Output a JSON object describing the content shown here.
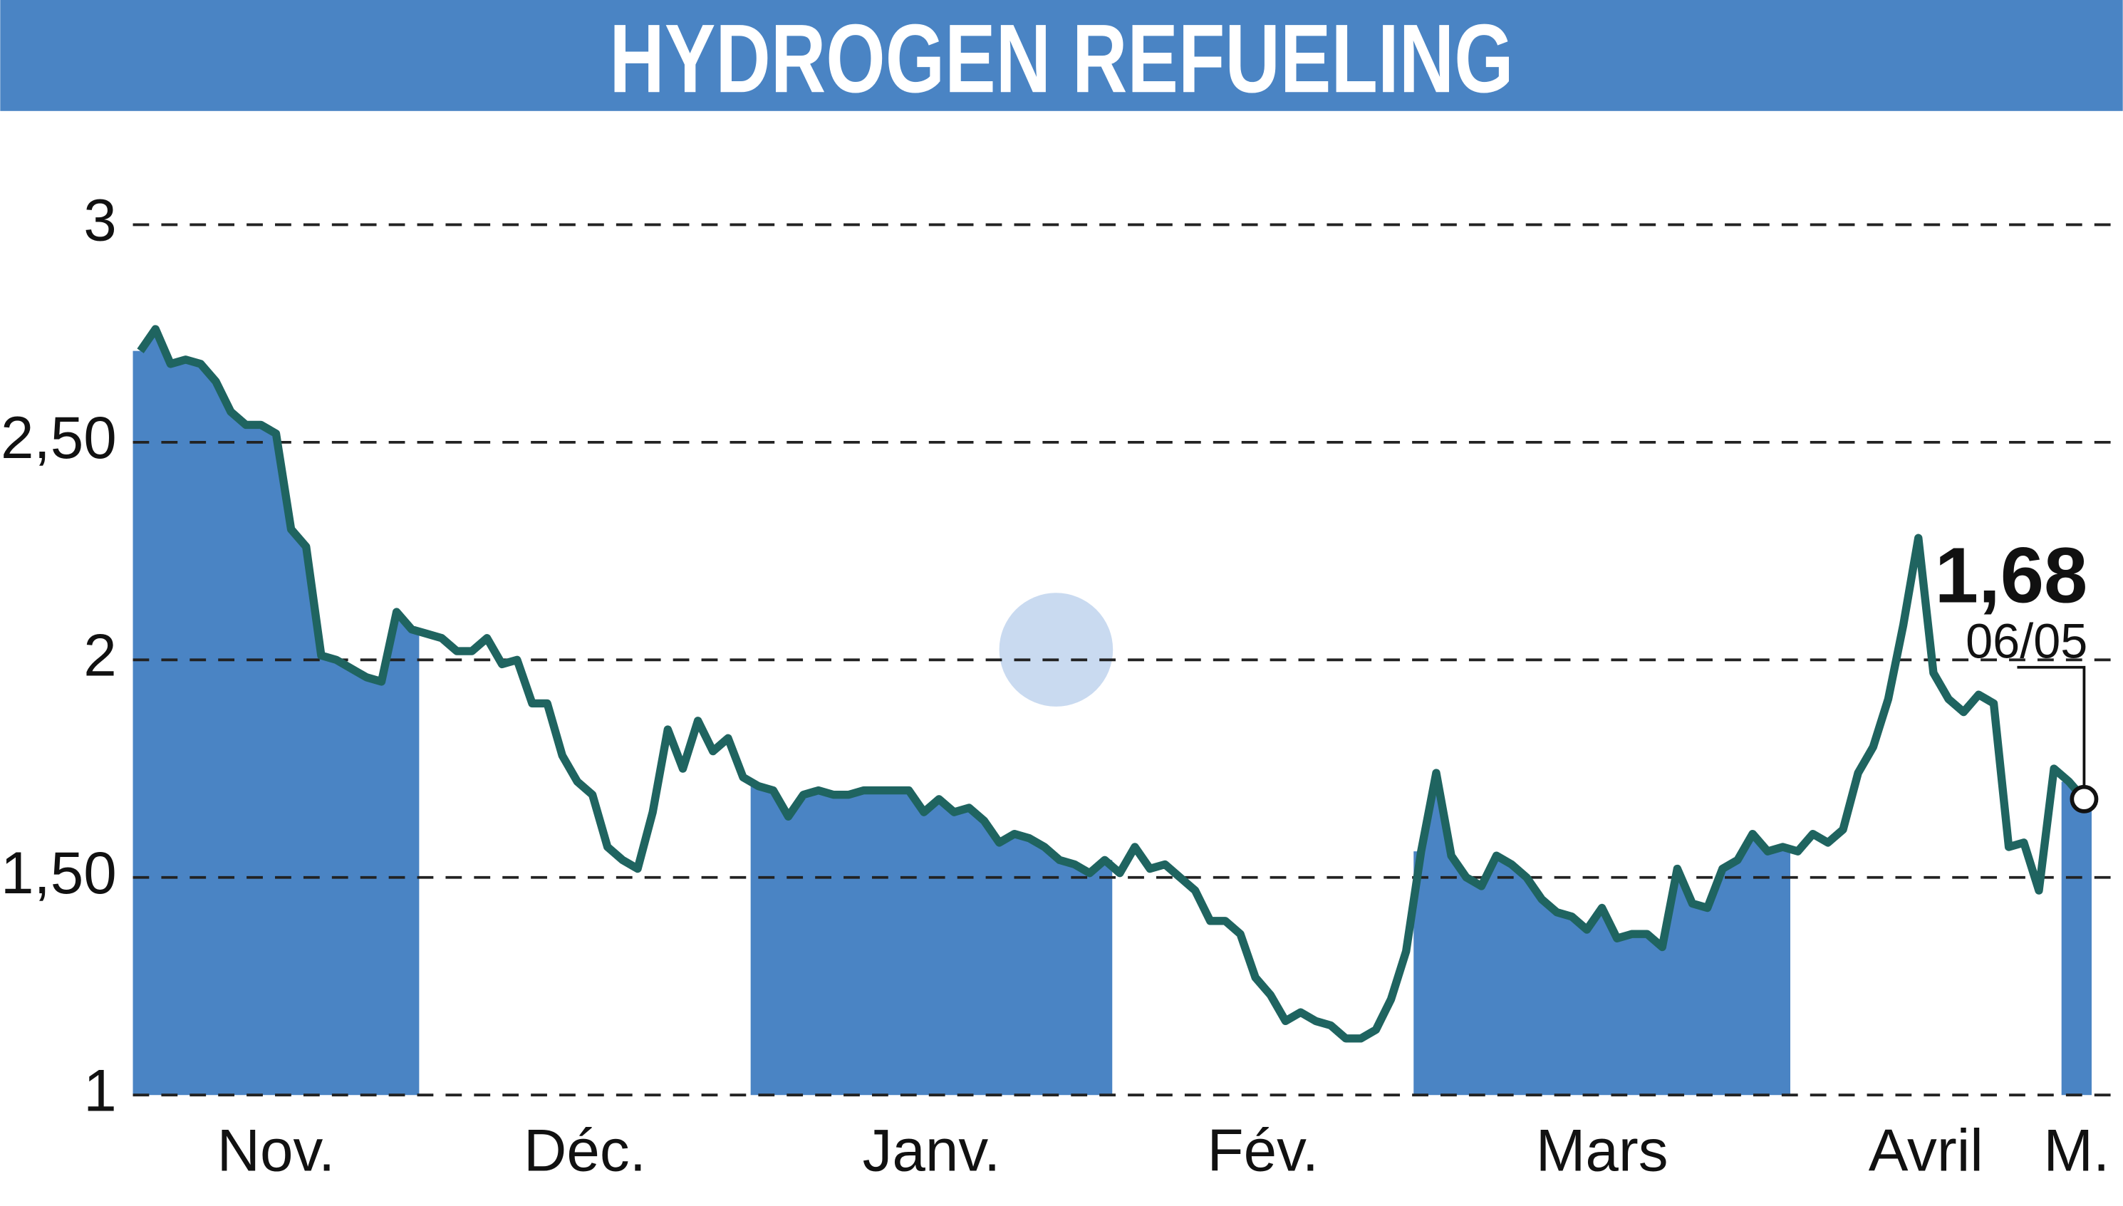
{
  "chart_data": {
    "type": "line",
    "title": "HYDROGEN REFUELING",
    "categories": [
      "Nov.",
      "Déc.",
      "Janv.",
      "Fév.",
      "Mars",
      "Avril",
      "M."
    ],
    "values": [
      [
        2.71,
        2.76,
        2.68,
        2.69,
        2.68,
        2.64,
        2.57,
        2.54,
        2.54,
        2.52,
        2.3,
        2.26,
        2.01,
        2.0,
        1.98,
        1.96,
        1.95,
        2.11,
        2.07
      ],
      [
        2.06,
        2.05,
        2.02,
        2.02,
        2.05,
        1.99,
        2.0,
        1.9,
        1.9,
        1.78,
        1.72,
        1.69,
        1.57,
        1.54,
        1.52,
        1.65,
        1.84,
        1.75,
        1.86,
        1.79,
        1.82,
        1.73
      ],
      [
        1.71,
        1.7,
        1.64,
        1.69,
        1.7,
        1.69,
        1.69,
        1.7,
        1.7,
        1.7,
        1.7,
        1.65,
        1.68,
        1.65,
        1.66,
        1.63,
        1.58,
        1.6,
        1.59,
        1.57,
        1.54,
        1.53,
        1.51,
        1.54
      ],
      [
        1.51,
        1.57,
        1.52,
        1.53,
        1.5,
        1.47,
        1.4,
        1.4,
        1.37,
        1.27,
        1.23,
        1.17,
        1.19,
        1.17,
        1.16,
        1.13,
        1.13,
        1.15,
        1.22,
        1.33
      ],
      [
        1.56,
        1.74,
        1.55,
        1.5,
        1.48,
        1.55,
        1.53,
        1.5,
        1.45,
        1.42,
        1.41,
        1.38,
        1.43,
        1.36,
        1.37,
        1.37,
        1.34,
        1.52,
        1.44,
        1.43,
        1.52,
        1.54,
        1.6,
        1.56,
        1.57
      ],
      [
        1.56,
        1.6,
        1.58,
        1.61,
        1.74,
        1.8,
        1.91,
        2.08,
        2.28,
        1.97,
        1.91,
        1.88,
        1.92,
        1.9,
        1.57,
        1.58,
        1.47,
        1.75
      ],
      [
        1.72,
        1.68
      ]
    ],
    "last_value_label": "1,68",
    "last_date": "06/05",
    "ylim": [
      1,
      3
    ],
    "yticks": [
      1,
      {
        "value": 1.5,
        "label": "1,50"
      },
      2,
      {
        "value": 2.5,
        "label": "2,50"
      },
      3
    ],
    "grid": true,
    "line_color": "#1f6460",
    "fill_color": "#4a84c4"
  }
}
